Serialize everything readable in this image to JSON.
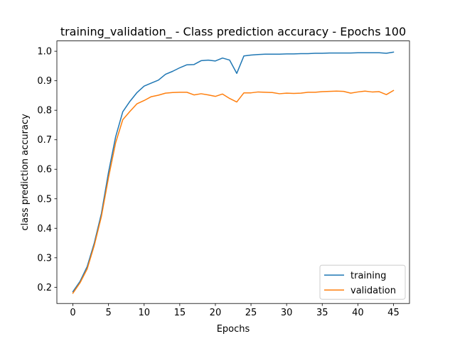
{
  "chart_data": {
    "type": "line",
    "title": "training_validation_ - Class prediction accuracy - Epochs 100",
    "xlabel": "Epochs",
    "ylabel": "class prediction accuracy",
    "xlim": [
      -2.25,
      47.25
    ],
    "ylim": [
      0.145,
      1.035
    ],
    "xticks": [
      0,
      5,
      10,
      15,
      20,
      25,
      30,
      35,
      40,
      45
    ],
    "xtick_labels": [
      "0",
      "5",
      "10",
      "15",
      "20",
      "25",
      "30",
      "35",
      "40",
      "45"
    ],
    "yticks": [
      0.2,
      0.3,
      0.4,
      0.5,
      0.6,
      0.7,
      0.8,
      0.9,
      1.0
    ],
    "ytick_labels": [
      "0.2",
      "0.3",
      "0.4",
      "0.5",
      "0.6",
      "0.7",
      "0.8",
      "0.9",
      "1.0"
    ],
    "grid": false,
    "legend_position": "lower-right",
    "x": [
      0,
      1,
      2,
      3,
      4,
      5,
      6,
      7,
      8,
      9,
      10,
      11,
      12,
      13,
      14,
      15,
      16,
      17,
      18,
      19,
      20,
      21,
      22,
      23,
      24,
      25,
      26,
      27,
      28,
      29,
      30,
      31,
      32,
      33,
      34,
      35,
      36,
      37,
      38,
      39,
      40,
      41,
      42,
      43,
      44,
      45
    ],
    "series": [
      {
        "name": "training",
        "color": "#1f77b4",
        "values": [
          0.185,
          0.22,
          0.27,
          0.35,
          0.45,
          0.59,
          0.71,
          0.795,
          0.83,
          0.86,
          0.882,
          0.892,
          0.902,
          0.922,
          0.932,
          0.944,
          0.954,
          0.955,
          0.968,
          0.97,
          0.967,
          0.977,
          0.97,
          0.925,
          0.984,
          0.987,
          0.989,
          0.99,
          0.99,
          0.99,
          0.991,
          0.991,
          0.992,
          0.992,
          0.993,
          0.993,
          0.994,
          0.994,
          0.994,
          0.994,
          0.995,
          0.995,
          0.995,
          0.995,
          0.993,
          0.997
        ]
      },
      {
        "name": "validation",
        "color": "#ff7f0e",
        "values": [
          0.18,
          0.215,
          0.262,
          0.342,
          0.44,
          0.572,
          0.69,
          0.768,
          0.796,
          0.822,
          0.833,
          0.846,
          0.851,
          0.858,
          0.86,
          0.861,
          0.861,
          0.852,
          0.856,
          0.852,
          0.847,
          0.855,
          0.84,
          0.828,
          0.859,
          0.859,
          0.862,
          0.861,
          0.86,
          0.856,
          0.858,
          0.857,
          0.858,
          0.861,
          0.861,
          0.863,
          0.864,
          0.865,
          0.864,
          0.858,
          0.862,
          0.865,
          0.862,
          0.863,
          0.853,
          0.867
        ]
      }
    ]
  }
}
